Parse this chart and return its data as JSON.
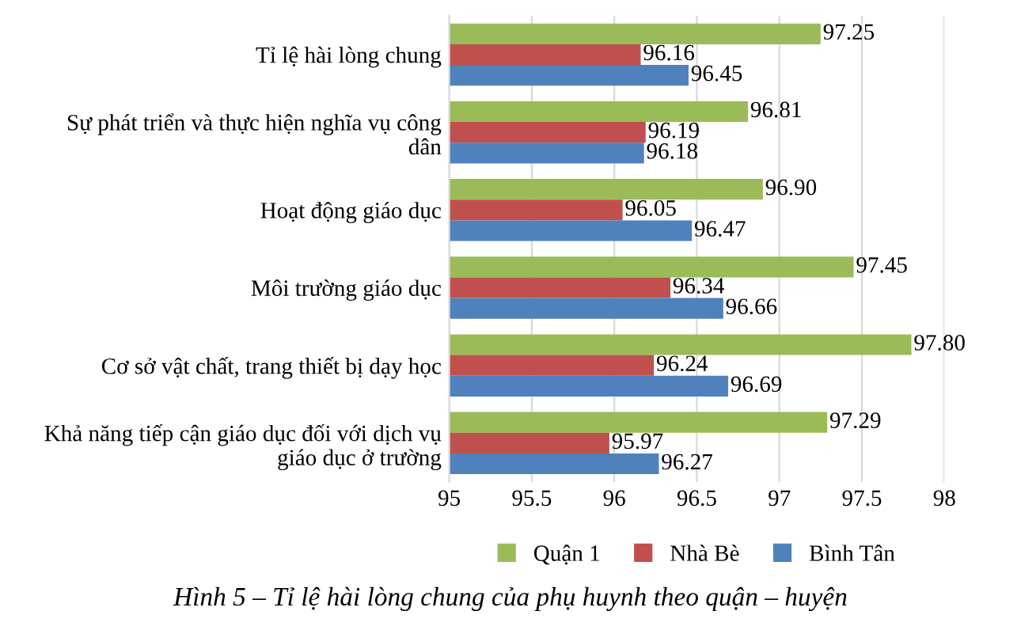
{
  "chart_data": {
    "type": "bar",
    "orientation": "horizontal",
    "categories": [
      "Tỉ lệ hài lòng chung",
      "Sự phát triển và thực hiện nghĩa vụ công\ndân",
      "Hoạt động giáo dục",
      "Môi trường giáo dục",
      "Cơ sở vật chất, trang thiết bị dạy học",
      "Khả năng tiếp cận giáo dục đối với dịch vụ\ngiáo dục ở trường"
    ],
    "series": [
      {
        "name": "Quận 1",
        "color": "#9bbb59",
        "values": [
          97.25,
          96.81,
          96.9,
          97.45,
          97.8,
          97.29
        ],
        "value_labels": [
          "97.25",
          "96.81",
          "96.90",
          "97.45",
          "97.80",
          "97.29"
        ]
      },
      {
        "name": "Nhà Bè",
        "color": "#c0504d",
        "values": [
          96.16,
          96.19,
          96.05,
          96.34,
          96.24,
          95.97
        ],
        "value_labels": [
          "96.16",
          "96.19",
          "96.05",
          "96.34",
          "96.24",
          "95.97"
        ]
      },
      {
        "name": "Bình Tân",
        "color": "#4f81bd",
        "values": [
          96.45,
          96.18,
          96.47,
          96.66,
          96.69,
          96.27
        ],
        "value_labels": [
          "96.45",
          "96.18",
          "96.47",
          "96.66",
          "96.69",
          "96.27"
        ]
      }
    ],
    "xlim": [
      95,
      98
    ],
    "xticks": [
      95,
      95.5,
      96,
      96.5,
      97,
      97.5,
      98
    ],
    "grid": "x",
    "legend": "bottom",
    "annotations": [
      "Hình 5 – Tỉ lệ hài lòng chung của phụ huynh theo quận – huyện"
    ]
  }
}
